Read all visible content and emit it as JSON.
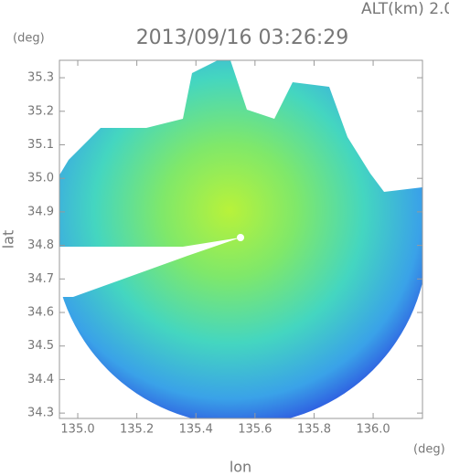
{
  "chart_data": {
    "type": "map",
    "title": "2013/09/16 03:26:29",
    "annotation": "ALT(km) 2.0",
    "y_unit": "(deg)",
    "x_unit": "(deg)",
    "xlabel": "lon",
    "ylabel": "lat",
    "xlim": [
      134.938,
      136.167
    ],
    "ylim": [
      34.284,
      35.352
    ],
    "xticks": [
      {
        "value": 135.0,
        "label": "135.0"
      },
      135.2,
      135.4,
      135.6,
      135.8,
      {
        "value": 136.0,
        "label": "136.0"
      }
    ],
    "yticks": [
      35.3,
      35.2,
      35.1,
      {
        "value": 35.0,
        "label": "35.0"
      },
      34.9,
      34.8,
      34.7,
      34.6,
      34.5,
      34.4,
      34.3
    ]
  }
}
